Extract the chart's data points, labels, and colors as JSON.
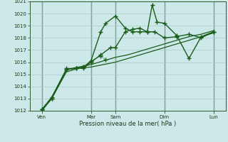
{
  "xlabel": "Pression niveau de la mer( hPa )",
  "ylim": [
    1012,
    1021
  ],
  "yticks": [
    1012,
    1013,
    1014,
    1015,
    1016,
    1017,
    1018,
    1019,
    1020,
    1021
  ],
  "bg_color": "#cce8e8",
  "grid_color": "#aacccc",
  "line_color": "#1a5c1a",
  "vline_color": "#2a4a2a",
  "xmax": 8.0,
  "xtick_pos": [
    0.5,
    2.5,
    3.5,
    5.5,
    7.5
  ],
  "xtick_lab": [
    "Ven",
    "Mar",
    "Sam",
    "Dim",
    "Lun"
  ],
  "vlines_x": [
    0.5,
    2.5,
    3.5,
    5.5,
    7.5
  ],
  "line1_x": [
    0.5,
    0.9,
    1.5,
    2.0,
    2.5,
    3.0,
    3.5,
    4.0,
    4.5,
    5.0,
    5.5,
    6.0,
    6.5,
    7.0,
    7.5
  ],
  "line1_y": [
    1012.0,
    1013.0,
    1015.2,
    1015.5,
    1015.6,
    1015.8,
    1016.0,
    1016.3,
    1016.6,
    1016.9,
    1017.2,
    1017.5,
    1017.8,
    1018.1,
    1018.4
  ],
  "line2_x": [
    0.5,
    0.9,
    1.5,
    2.0,
    2.5,
    3.0,
    3.5,
    4.0,
    4.5,
    5.0,
    5.5,
    6.0,
    6.5,
    7.0,
    7.5
  ],
  "line2_y": [
    1012.1,
    1013.1,
    1015.4,
    1015.6,
    1015.8,
    1016.1,
    1016.4,
    1016.6,
    1016.9,
    1017.2,
    1017.5,
    1017.8,
    1018.1,
    1018.3,
    1018.6
  ],
  "line3_x": [
    0.5,
    0.9,
    1.5,
    1.9,
    2.2,
    2.5,
    2.9,
    3.3,
    3.5,
    3.9,
    4.2,
    4.5,
    4.8,
    5.1,
    5.5,
    6.0,
    6.5,
    7.0,
    7.5
  ],
  "line3_y": [
    1012.1,
    1013.1,
    1015.4,
    1015.5,
    1015.5,
    1016.0,
    1016.6,
    1017.2,
    1017.2,
    1018.5,
    1018.7,
    1018.8,
    1018.5,
    1018.5,
    1018.0,
    1018.1,
    1018.3,
    1018.0,
    1018.5
  ],
  "line4_x": [
    0.5,
    0.9,
    1.5,
    1.9,
    2.2,
    2.5,
    2.9,
    3.1,
    3.5,
    3.9,
    4.2,
    4.5,
    4.8,
    5.0,
    5.2,
    5.5,
    6.0,
    6.5,
    7.0,
    7.5
  ],
  "line4_y": [
    1012.1,
    1013.0,
    1015.4,
    1015.5,
    1015.6,
    1016.1,
    1018.5,
    1019.2,
    1019.8,
    1018.8,
    1018.5,
    1018.5,
    1018.5,
    1020.7,
    1019.3,
    1019.2,
    1018.2,
    1016.3,
    1018.1,
    1018.5
  ],
  "line5_x": [
    0.5,
    0.9,
    1.5,
    1.9,
    2.2,
    2.5,
    2.9,
    3.1
  ],
  "line5_y": [
    1012.1,
    1013.0,
    1015.5,
    1015.5,
    1015.6,
    1016.1,
    1016.5,
    1016.2
  ]
}
